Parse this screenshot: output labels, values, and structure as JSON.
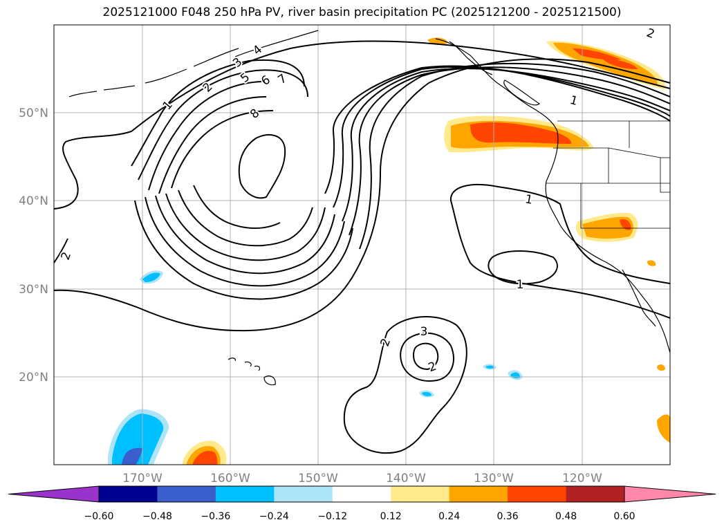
{
  "title": "2025121000 F048 250 hPa PV, river basin precipitation PC (2025121200 - 2025121500)",
  "map": {
    "lon_ticks": [
      "170°W",
      "160°W",
      "150°W",
      "140°W",
      "130°W",
      "120°W"
    ],
    "lat_ticks": [
      "50°N",
      "40°N",
      "30°N",
      "20°N"
    ],
    "tick_color": "#808080",
    "grid": true,
    "contour_labels": [
      "1",
      "2",
      "3",
      "4",
      "5",
      "6",
      "7",
      "8",
      "1",
      "1",
      "2",
      "1",
      "2",
      "3",
      "2",
      "2"
    ]
  },
  "colorbar": {
    "colors": [
      "#9933cc",
      "#000090",
      "#3a5fcd",
      "#00bfff",
      "#aee4f8",
      "#ffffff",
      "#ffe98a",
      "#ffa500",
      "#ff4500",
      "#b22222",
      "#ff88aa"
    ],
    "ticks": [
      "−0.60",
      "−0.48",
      "−0.36",
      "−0.24",
      "−0.12",
      "0.12",
      "0.24",
      "0.36",
      "0.48",
      "0.60"
    ],
    "extend": "both"
  }
}
